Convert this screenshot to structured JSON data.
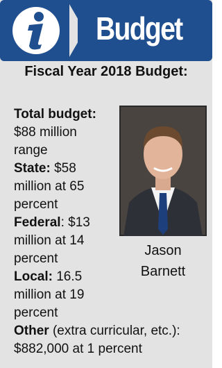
{
  "header": {
    "title": "Budget"
  },
  "subtitle": "Fiscal Year 2018 Budget:",
  "items": [
    {
      "label": "Total budget:",
      "text": "$88 million range"
    },
    {
      "label": "State:",
      "text": "$58 million at 65 percent"
    },
    {
      "label": "Federal",
      "text": ": $13 million at 14 percent"
    },
    {
      "label": "Local:",
      "text": "16.5 million at 19 percent"
    },
    {
      "label": "Other",
      "text": "(extra curricular, etc.): $882,000 at 1 percent"
    }
  ],
  "photo": {
    "caption": "Jason Barnett"
  }
}
